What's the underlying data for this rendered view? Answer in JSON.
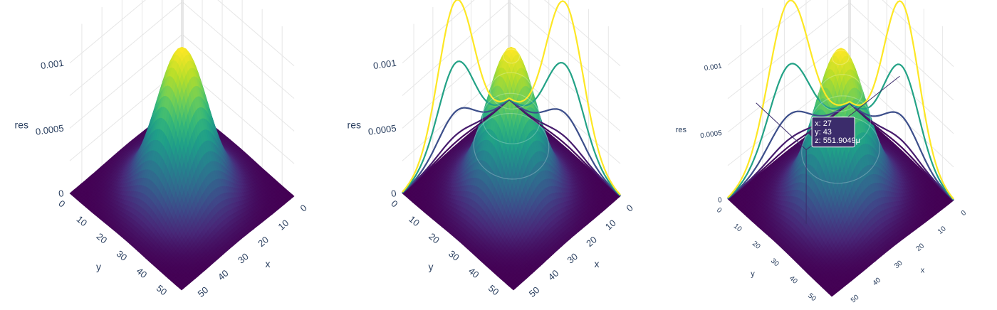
{
  "chart_data": [
    {
      "type": "surface",
      "z_ticks": [
        "0",
        "0.0005",
        "0.001"
      ],
      "x_ticks": [
        "0",
        "10",
        "20",
        "30",
        "40",
        "50"
      ],
      "y_ticks": [
        "0",
        "10",
        "20",
        "30",
        "40",
        "50"
      ],
      "xlabel": "x",
      "ylabel": "y",
      "zlabel": "res",
      "xlim": [
        0,
        56
      ],
      "ylim": [
        0,
        56
      ],
      "zlim": [
        0,
        0.0012
      ],
      "peak": {
        "x": 28,
        "y": 28,
        "z": 0.00112
      },
      "colorscale": "viridis",
      "contours": false
    },
    {
      "type": "surface",
      "z_ticks": [
        "0",
        "0.0005",
        "0.001"
      ],
      "x_ticks": [
        "0",
        "10",
        "20",
        "30",
        "40",
        "50"
      ],
      "y_ticks": [
        "0",
        "10",
        "20",
        "30",
        "40",
        "50"
      ],
      "xlabel": "x",
      "ylabel": "y",
      "zlabel": "res",
      "xlim": [
        0,
        56
      ],
      "ylim": [
        0,
        56
      ],
      "zlim": [
        0,
        0.0012
      ],
      "peak": {
        "x": 28,
        "y": 28,
        "z": 0.00112
      },
      "colorscale": "viridis",
      "contours": true
    },
    {
      "type": "surface",
      "z_ticks": [
        "0",
        "0.0005",
        "0.001"
      ],
      "x_ticks": [
        "0",
        "10",
        "20",
        "30",
        "40",
        "50"
      ],
      "y_ticks": [
        "0",
        "10",
        "20",
        "30",
        "40",
        "50"
      ],
      "xlabel": "x",
      "ylabel": "y",
      "zlabel": "res",
      "xlim": [
        0,
        56
      ],
      "ylim": [
        0,
        56
      ],
      "zlim": [
        0,
        0.0012
      ],
      "peak": {
        "x": 28,
        "y": 28,
        "z": 0.00112
      },
      "colorscale": "viridis",
      "contours": true,
      "hover": {
        "x": "x: 27",
        "y": "y: 43",
        "z": "z: 551.9049μ"
      }
    }
  ],
  "colors": {
    "viridis": [
      "#440154",
      "#482878",
      "#3e4989",
      "#31688e",
      "#26828e",
      "#1f9e89",
      "#35b779",
      "#6ece58",
      "#b5de2b",
      "#fde725"
    ],
    "grid": "#e6e6e6",
    "tick_text": "#2a3f5f",
    "tooltip_bg": "#3b2c6b"
  }
}
